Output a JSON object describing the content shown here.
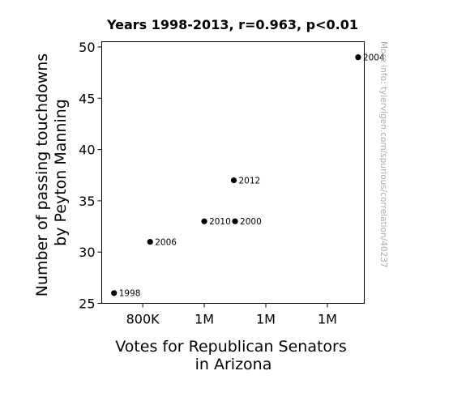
{
  "chart_data": {
    "type": "scatter",
    "title": "Years 1998-2013, r=0.963, p<0.01",
    "xlabel": [
      "Votes for Republican Senators",
      "in Arizona"
    ],
    "ylabel": [
      "Number of passing touchdowns",
      "by Peyton Manning"
    ],
    "watermark": "More info: tylervigen.com/spurious/correlation/40237",
    "xlim": [
      700000,
      1300000
    ],
    "ylim": [
      25,
      50
    ],
    "x_ticks": [
      {
        "value": 800000,
        "label": "800K"
      },
      {
        "value": 950000,
        "label": "1M"
      },
      {
        "value": 1100000,
        "label": "1M"
      },
      {
        "value": 1250000,
        "label": "1M"
      }
    ],
    "y_ticks": [
      25,
      30,
      35,
      40,
      45,
      50
    ],
    "grid": false,
    "marker_color": "#000000",
    "points": [
      {
        "x": 730000,
        "y": 26,
        "label": "1998"
      },
      {
        "x": 818000,
        "y": 31,
        "label": "2006"
      },
      {
        "x": 950000,
        "y": 33,
        "label": "2010"
      },
      {
        "x": 1025000,
        "y": 33,
        "label": "2000"
      },
      {
        "x": 1022000,
        "y": 37,
        "label": "2012"
      },
      {
        "x": 1325000,
        "y": 49,
        "label": "2004"
      }
    ]
  }
}
